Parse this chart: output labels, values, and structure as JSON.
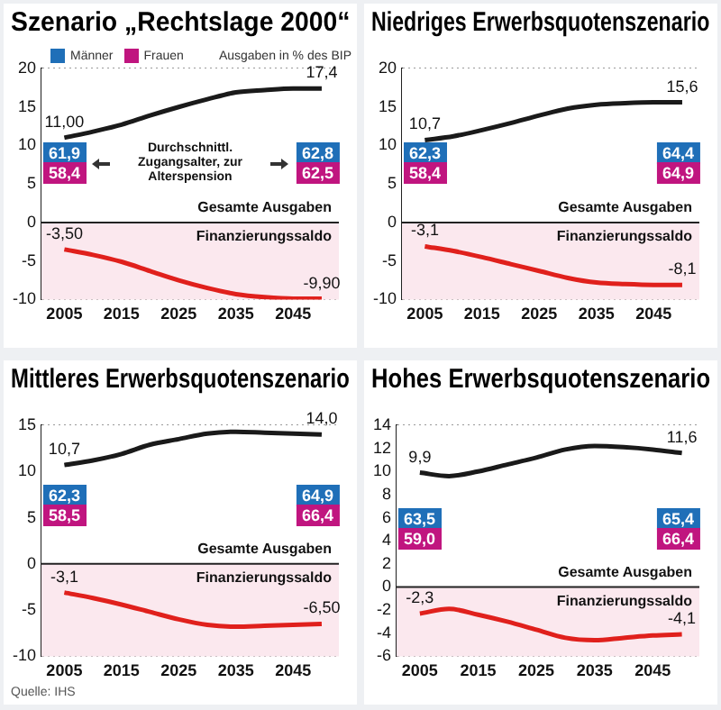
{
  "chart_data": [
    {
      "type": "line",
      "title": "Szenario „Rechtslage 2000“",
      "xlim": [
        2001,
        2053
      ],
      "ylim": [
        -10,
        20
      ],
      "xticks": [
        2005,
        2015,
        2025,
        2035,
        2045
      ],
      "yticks": [
        -10,
        -5,
        0,
        5,
        10,
        15,
        20
      ],
      "grid": true,
      "x": [
        2005,
        2010,
        2015,
        2020,
        2025,
        2030,
        2035,
        2040,
        2045,
        2050
      ],
      "series": [
        {
          "color": "#1a1a1a",
          "values": [
            11.0,
            11.8,
            12.7,
            13.9,
            15.0,
            16.0,
            16.9,
            17.2,
            17.4,
            17.4
          ],
          "value_labels": [
            "11,00",
            null,
            null,
            null,
            null,
            null,
            null,
            null,
            null,
            "17,4"
          ]
        },
        {
          "color": "#e0201c",
          "values": [
            -3.5,
            -4.2,
            -5.1,
            -6.3,
            -7.5,
            -8.5,
            -9.3,
            -9.7,
            -9.9,
            -9.9
          ],
          "value_labels": [
            "-3,50",
            null,
            null,
            null,
            null,
            null,
            null,
            null,
            null,
            "-9,90"
          ]
        }
      ],
      "bands": [
        {
          "axis": "y",
          "from": 0,
          "to": 20,
          "color": "#ffffff",
          "label": "Gesamte Ausgaben"
        },
        {
          "axis": "y",
          "from": -10,
          "to": 0,
          "color": "#fbe8ee",
          "label": "Finanzierungssaldo"
        }
      ],
      "annotations": [
        "Männer",
        "Frauen",
        "Ausgaben in % des BIP",
        "Durchschnittl. Zugangsalter, zur Alterspension",
        "61,9",
        "58,4",
        "62,8",
        "62,5"
      ]
    },
    {
      "type": "line",
      "title": "Niedriges Erwerbsquotenszenario",
      "xlim": [
        2001,
        2053
      ],
      "ylim": [
        -10,
        20
      ],
      "xticks": [
        2005,
        2015,
        2025,
        2035,
        2045
      ],
      "yticks": [
        -10,
        -5,
        0,
        5,
        10,
        15,
        20
      ],
      "grid": true,
      "x": [
        2005,
        2010,
        2015,
        2020,
        2025,
        2030,
        2035,
        2040,
        2045,
        2050
      ],
      "series": [
        {
          "color": "#1a1a1a",
          "values": [
            10.7,
            11.2,
            12.0,
            12.9,
            13.9,
            14.8,
            15.3,
            15.5,
            15.6,
            15.6
          ],
          "value_labels": [
            "10,7",
            null,
            null,
            null,
            null,
            null,
            null,
            null,
            null,
            "15,6"
          ]
        },
        {
          "color": "#e0201c",
          "values": [
            -3.1,
            -3.7,
            -4.5,
            -5.4,
            -6.3,
            -7.2,
            -7.8,
            -8.0,
            -8.1,
            -8.1
          ],
          "value_labels": [
            "-3,1",
            null,
            null,
            null,
            null,
            null,
            null,
            null,
            null,
            "-8,1"
          ]
        }
      ],
      "bands": [
        {
          "axis": "y",
          "from": 0,
          "to": 20,
          "color": "#ffffff",
          "label": "Gesamte Ausgaben"
        },
        {
          "axis": "y",
          "from": -10,
          "to": 0,
          "color": "#fbe8ee",
          "label": "Finanzierungssaldo"
        }
      ],
      "annotations": [
        "62,3",
        "58,4",
        "64,4",
        "64,9"
      ]
    },
    {
      "type": "line",
      "title": "Mittleres Erwerbsquotenszenario",
      "xlim": [
        2001,
        2053
      ],
      "ylim": [
        -10,
        15
      ],
      "xticks": [
        2005,
        2015,
        2025,
        2035,
        2045
      ],
      "yticks": [
        -10,
        -5,
        0,
        5,
        10,
        15
      ],
      "grid": true,
      "x": [
        2005,
        2010,
        2015,
        2020,
        2025,
        2030,
        2035,
        2040,
        2045,
        2050
      ],
      "series": [
        {
          "color": "#1a1a1a",
          "values": [
            10.7,
            11.2,
            11.9,
            12.9,
            13.5,
            14.1,
            14.3,
            14.2,
            14.1,
            14.0
          ],
          "value_labels": [
            "10,7",
            null,
            null,
            null,
            null,
            null,
            null,
            null,
            null,
            "14,0"
          ]
        },
        {
          "color": "#e0201c",
          "values": [
            -3.1,
            -3.7,
            -4.4,
            -5.2,
            -6.0,
            -6.6,
            -6.8,
            -6.7,
            -6.6,
            -6.5
          ],
          "value_labels": [
            "-3,1",
            null,
            null,
            null,
            null,
            null,
            null,
            null,
            null,
            "-6,50"
          ]
        }
      ],
      "bands": [
        {
          "axis": "y",
          "from": 0,
          "to": 15,
          "color": "#ffffff",
          "label": "Gesamte Ausgaben"
        },
        {
          "axis": "y",
          "from": -10,
          "to": 0,
          "color": "#fbe8ee",
          "label": "Finanzierungssaldo"
        }
      ],
      "annotations": [
        "Quelle: IHS",
        "62,3",
        "58,5",
        "64,9",
        "66,4"
      ]
    },
    {
      "type": "line",
      "title": "Hohes Erwerbsquotenszenario",
      "xlim": [
        2001,
        2053
      ],
      "ylim": [
        -6,
        14
      ],
      "xticks": [
        2005,
        2015,
        2025,
        2035,
        2045
      ],
      "yticks": [
        -6,
        -4,
        -2,
        0,
        2,
        4,
        6,
        8,
        10,
        12,
        14
      ],
      "grid": true,
      "x": [
        2005,
        2010,
        2015,
        2020,
        2025,
        2030,
        2035,
        2040,
        2045,
        2050
      ],
      "series": [
        {
          "color": "#1a1a1a",
          "values": [
            9.9,
            9.6,
            10.0,
            10.6,
            11.2,
            11.9,
            12.2,
            12.1,
            11.9,
            11.6
          ],
          "value_labels": [
            "9,9",
            null,
            null,
            null,
            null,
            null,
            null,
            null,
            null,
            "11,6"
          ]
        },
        {
          "color": "#e0201c",
          "values": [
            -2.3,
            -1.9,
            -2.4,
            -3.0,
            -3.7,
            -4.4,
            -4.6,
            -4.4,
            -4.2,
            -4.1
          ],
          "value_labels": [
            "-2,3",
            null,
            null,
            null,
            null,
            null,
            null,
            null,
            null,
            "-4,1"
          ]
        }
      ],
      "bands": [
        {
          "axis": "y",
          "from": 0,
          "to": 14,
          "color": "#ffffff",
          "label": "Gesamte Ausgaben"
        },
        {
          "axis": "y",
          "from": -6,
          "to": 0,
          "color": "#fbe8ee",
          "label": "Finanzierungssaldo"
        }
      ],
      "annotations": [
        "63,5",
        "59,0",
        "65,4",
        "66,4"
      ]
    }
  ]
}
